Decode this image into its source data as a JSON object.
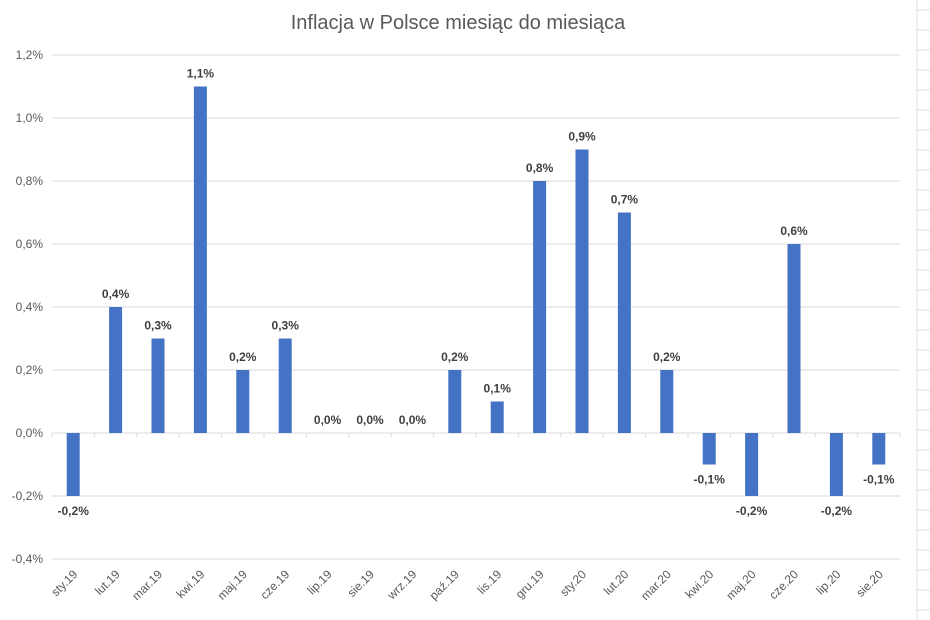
{
  "chart_data": {
    "type": "bar",
    "title": "Inflacja w Polsce miesiąc do miesiąca",
    "xlabel": "",
    "ylabel": "",
    "ylim": [
      -0.4,
      1.2
    ],
    "yticks": [
      -0.4,
      -0.2,
      0.0,
      0.2,
      0.4,
      0.6,
      0.8,
      1.0,
      1.2
    ],
    "ytick_labels": [
      "-0,4%",
      "-0,2%",
      "0,0%",
      "0,2%",
      "0,4%",
      "0,6%",
      "0,8%",
      "1,0%",
      "1,2%"
    ],
    "grid": true,
    "bar_color": "#4472c4",
    "categories": [
      "sty.19",
      "lut.19",
      "mar.19",
      "kwi.19",
      "maj.19",
      "cze.19",
      "lip.19",
      "sie.19",
      "wrz.19",
      "paź.19",
      "lis.19",
      "gru.19",
      "sty.20",
      "lut.20",
      "mar.20",
      "kwi.20",
      "maj.20",
      "cze.20",
      "lip.20",
      "sie.20"
    ],
    "values": [
      -0.2,
      0.4,
      0.3,
      1.1,
      0.2,
      0.3,
      0.0,
      0.0,
      0.0,
      0.2,
      0.1,
      0.8,
      0.9,
      0.7,
      0.2,
      -0.1,
      -0.2,
      0.6,
      -0.2,
      -0.1
    ],
    "data_labels": [
      "-0,2%",
      "0,4%",
      "0,3%",
      "1,1%",
      "0,2%",
      "0,3%",
      "0,0%",
      "0,0%",
      "0,0%",
      "0,2%",
      "0,1%",
      "0,8%",
      "0,9%",
      "0,7%",
      "0,2%",
      "-0,1%",
      "-0,2%",
      "0,6%",
      "-0,2%",
      "-0,1%"
    ]
  }
}
